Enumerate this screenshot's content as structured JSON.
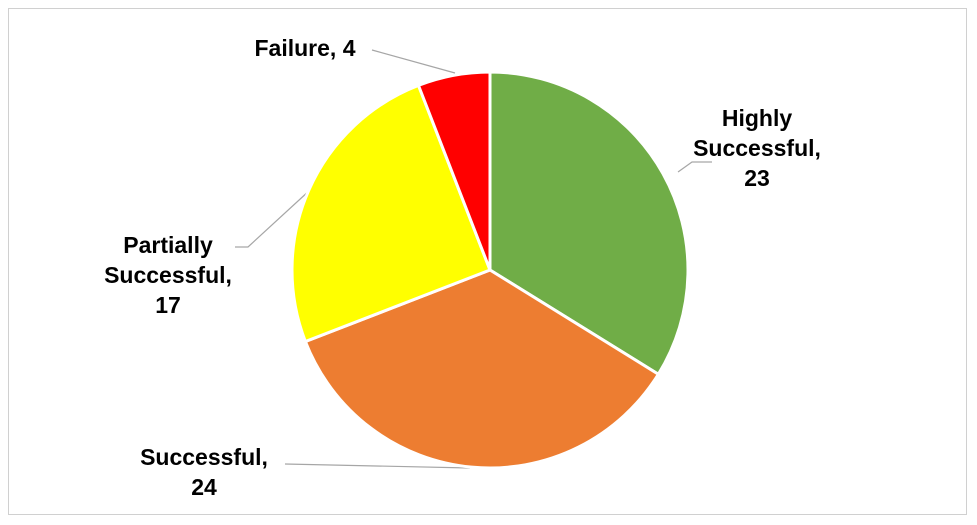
{
  "chart_data": {
    "type": "pie",
    "categories": [
      "Highly Successful,",
      "Successful,",
      "Partially Successful,",
      "Failure,"
    ],
    "values": [
      23,
      24,
      17,
      4
    ],
    "colors": [
      "#70ad47",
      "#ed7d31",
      "#ffff00",
      "#ff0000"
    ]
  }
}
